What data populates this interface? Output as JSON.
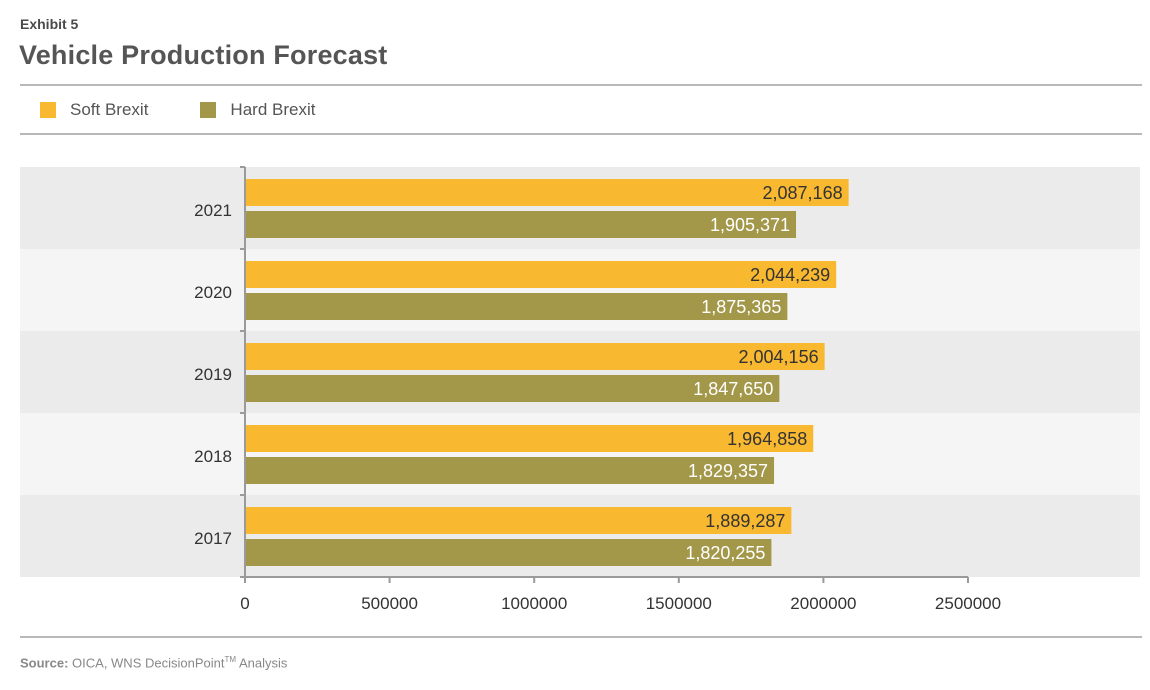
{
  "header": {
    "exhibit": "Exhibit 5",
    "title": "Vehicle Production Forecast"
  },
  "legend": [
    {
      "label": "Soft Brexit",
      "color": "#f8b830"
    },
    {
      "label": "Hard Brexit",
      "color": "#a3984a"
    }
  ],
  "source": {
    "label": "Source:",
    "text": "OICA, WNS DecisionPoint",
    "tm": "TM",
    "suffix": "Analysis"
  },
  "colors": {
    "band_dark": "#ebebeb",
    "band_light": "#f5f5f5",
    "axis": "#9a9a9a",
    "soft_label_text": "#333333",
    "hard_label_text": "#ffffff"
  },
  "chart_data": {
    "type": "bar",
    "orientation": "horizontal",
    "categories": [
      "2021",
      "2020",
      "2019",
      "2018",
      "2017"
    ],
    "series": [
      {
        "name": "Soft Brexit",
        "values": [
          2087168,
          2044239,
          2004156,
          1964858,
          1889287
        ],
        "labels": [
          "2,087,168",
          "2,044,239",
          "2,004,156",
          "1,964,858",
          "1,889,287"
        ]
      },
      {
        "name": "Hard Brexit",
        "values": [
          1905371,
          1875365,
          1847650,
          1829357,
          1820255
        ],
        "labels": [
          "1,905,371",
          "1,875,365",
          "1,847,650",
          "1,829,357",
          "1,820,255"
        ]
      }
    ],
    "x_ticks": [
      "0",
      "500000",
      "1000000",
      "1500000",
      "2000000",
      "2500000"
    ],
    "xlim": [
      0,
      2500000
    ],
    "grid": false,
    "legend_position": "top-left"
  }
}
